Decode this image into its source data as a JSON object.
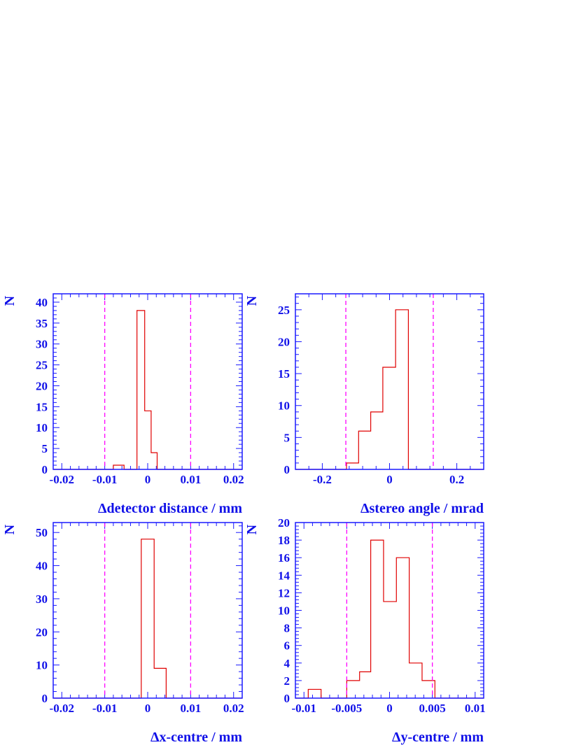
{
  "chart_data": [
    {
      "type": "histogram",
      "xlabel": "Δdetector distance / mm",
      "ylabel": "N",
      "xlim": [
        -0.022,
        0.022
      ],
      "ylim": [
        0,
        42
      ],
      "x_ticks": [
        -0.02,
        -0.01,
        0,
        0.01,
        0.02
      ],
      "x_tick_labels": [
        "-0.02",
        "-0.01",
        "0",
        "0.01",
        "0.02"
      ],
      "y_ticks": [
        0,
        5,
        10,
        15,
        20,
        25,
        30,
        35,
        40
      ],
      "y_tick_labels": [
        "0",
        "5",
        "10",
        "15",
        "20",
        "25",
        "30",
        "35",
        "40"
      ],
      "bin_edges": [
        -0.022,
        -0.008,
        -0.0055,
        -0.0025,
        -0.0007,
        0.0008,
        0.0022,
        0.0042,
        0.022
      ],
      "counts": [
        0,
        1,
        0,
        38,
        14,
        4,
        0,
        0
      ],
      "cut_lines": [
        -0.01,
        0.01
      ],
      "colors": {
        "histogram": "#e00000",
        "cut": "#ff00ff",
        "axes": "#1a1aff"
      }
    },
    {
      "type": "histogram",
      "xlabel": "Δstereo angle / mrad",
      "ylabel": "N",
      "xlim": [
        -0.28,
        0.28
      ],
      "ylim": [
        0,
        27.5
      ],
      "x_ticks": [
        -0.2,
        0,
        0.2
      ],
      "x_tick_labels": [
        "-0.2",
        "0",
        "0.2"
      ],
      "y_ticks": [
        0,
        5,
        10,
        15,
        20,
        25
      ],
      "y_tick_labels": [
        "0",
        "5",
        "10",
        "15",
        "20",
        "25"
      ],
      "bin_edges": [
        -0.28,
        -0.128,
        -0.092,
        -0.056,
        -0.02,
        0.018,
        0.056,
        0.28
      ],
      "counts": [
        0,
        1,
        6,
        9,
        16,
        25,
        0
      ],
      "cut_lines": [
        -0.13,
        0.13
      ],
      "colors": {
        "histogram": "#e00000",
        "cut": "#ff00ff",
        "axes": "#1a1aff"
      }
    },
    {
      "type": "histogram",
      "xlabel": "Δx-centre / mm",
      "ylabel": "N",
      "xlim": [
        -0.022,
        0.022
      ],
      "ylim": [
        0,
        53
      ],
      "x_ticks": [
        -0.02,
        -0.01,
        0,
        0.01,
        0.02
      ],
      "x_tick_labels": [
        "-0.02",
        "-0.01",
        "0",
        "0.01",
        "0.02"
      ],
      "y_ticks": [
        0,
        10,
        20,
        30,
        40,
        50
      ],
      "y_tick_labels": [
        "0",
        "10",
        "20",
        "30",
        "40",
        "50"
      ],
      "bin_edges": [
        -0.022,
        -0.0015,
        0.0015,
        0.0043,
        0.022
      ],
      "counts": [
        0,
        48,
        9,
        0
      ],
      "cut_lines": [
        -0.01,
        0.01
      ],
      "colors": {
        "histogram": "#e00000",
        "cut": "#ff00ff",
        "axes": "#1a1aff"
      }
    },
    {
      "type": "histogram",
      "xlabel": "Δy-centre / mm",
      "ylabel": "N",
      "xlim": [
        -0.011,
        0.011
      ],
      "ylim": [
        0,
        20
      ],
      "x_ticks": [
        -0.01,
        -0.005,
        0,
        0.005,
        0.01
      ],
      "x_tick_labels": [
        "-0.01",
        "-0.005",
        "0",
        "0.005",
        "0.01"
      ],
      "y_ticks": [
        0,
        2,
        4,
        6,
        8,
        10,
        12,
        14,
        16,
        18,
        20
      ],
      "y_tick_labels": [
        "0",
        "2",
        "4",
        "6",
        "8",
        "10",
        "12",
        "14",
        "16",
        "18",
        "20"
      ],
      "bin_edges": [
        -0.011,
        -0.0095,
        -0.008,
        -0.005,
        -0.0035,
        -0.0022,
        -0.0007,
        0.0008,
        0.0023,
        0.0038,
        0.0053,
        0.011
      ],
      "counts": [
        0,
        1,
        0,
        2,
        3,
        18,
        11,
        16,
        4,
        2,
        0
      ],
      "cut_lines": [
        -0.005,
        0.005
      ],
      "colors": {
        "histogram": "#e00000",
        "cut": "#ff00ff",
        "axes": "#1a1aff"
      }
    }
  ]
}
